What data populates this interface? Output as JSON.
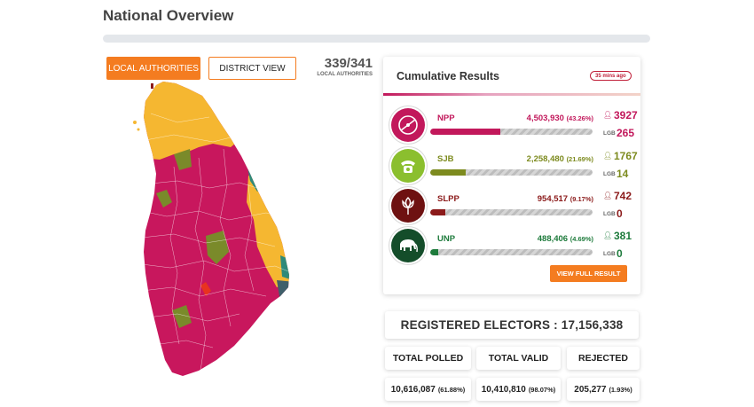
{
  "page": {
    "title": "National Overview"
  },
  "toggle": {
    "local_authorities_label": "LOCAL AUTHORITIES",
    "district_view_label": "DISTRICT VIEW"
  },
  "counter": {
    "value": "339/341",
    "label": "LOCAL AUTHORITIES"
  },
  "colors": {
    "accent": "#f47c20",
    "npp": "#c2185b",
    "sjb": "#7d8b1f",
    "slpp": "#8b1a1a",
    "unp": "#1e7b3c",
    "map_npp": "#c8175d",
    "map_sjb": "#f5b731",
    "map_other": "#7a8a2a",
    "map_teal": "#2f8a7a"
  },
  "results": {
    "title": "Cumulative Results",
    "time_badge": "35 mins ago",
    "lgb_label": "LGB",
    "parties": [
      {
        "name": "NPP",
        "votes": "4,503,930",
        "pct": "(43.26%)",
        "share": 0.4326,
        "seats": "3927",
        "lgb": "265",
        "color": "#c2185b",
        "icon": "npp-compass-icon"
      },
      {
        "name": "SJB",
        "votes": "2,258,480",
        "pct": "(21.69%)",
        "share": 0.2169,
        "seats": "1767",
        "lgb": "14",
        "color": "#7d8b1f",
        "icon": "sjb-telephone-icon"
      },
      {
        "name": "SLPP",
        "votes": "954,517",
        "pct": "(9.17%)",
        "share": 0.0917,
        "seats": "742",
        "lgb": "0",
        "color": "#8b1a1a",
        "icon": "slpp-flower-icon"
      },
      {
        "name": "UNP",
        "votes": "488,406",
        "pct": "(4.69%)",
        "share": 0.0469,
        "seats": "381",
        "lgb": "0",
        "color": "#1e7b3c",
        "icon": "unp-elephant-icon"
      }
    ],
    "view_full_label": "VIEW FULL RESULT"
  },
  "electors": {
    "label": "REGISTERED ELECTORS : 17,156,338"
  },
  "stats": [
    {
      "label": "TOTAL POLLED",
      "value": "10,616,087",
      "pct": "(61.88%)"
    },
    {
      "label": "TOTAL VALID",
      "value": "10,410,810",
      "pct": "(98.07%)"
    },
    {
      "label": "REJECTED",
      "value": "205,277",
      "pct": "(1.93%)"
    }
  ]
}
